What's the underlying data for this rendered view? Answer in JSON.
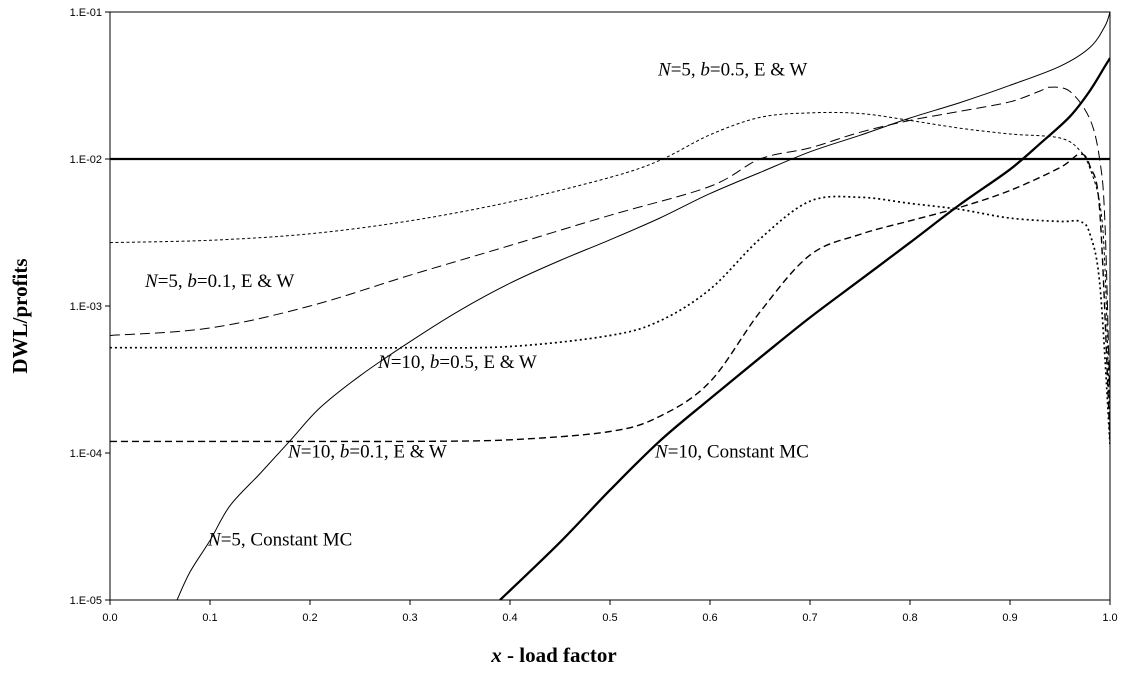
{
  "chart_data": {
    "type": "line",
    "title": "",
    "xlabel": "x - load factor",
    "xlabel_var": "x",
    "xlabel_rest": " - load factor",
    "ylabel": "DWL/profits",
    "y_scale": "log",
    "xlim": [
      0.0,
      1.0
    ],
    "ylim": [
      1e-05,
      0.1
    ],
    "x_ticks": [
      0.0,
      0.1,
      0.2,
      0.3,
      0.4,
      0.5,
      0.6,
      0.7,
      0.8,
      0.9,
      1.0
    ],
    "x_tick_labels": [
      "0.0",
      "0.1",
      "0.2",
      "0.3",
      "0.4",
      "0.5",
      "0.6",
      "0.7",
      "0.8",
      "0.9",
      "1.0"
    ],
    "y_ticks": [
      1e-05,
      0.0001,
      0.001,
      0.01,
      0.1
    ],
    "y_tick_labels": [
      "1.E-05",
      "1.E-04",
      "1.E-03",
      "1.E-02",
      "1.E-01"
    ],
    "grid": false,
    "legend": "none",
    "series": [
      {
        "style": "thick-solid",
        "points": [
          [
            0.0,
            0.01
          ],
          [
            1.0,
            0.01
          ]
        ]
      },
      {
        "style": "thin-solid",
        "points": [
          [
            0.067,
            1e-05
          ],
          [
            0.08,
            1.55e-05
          ],
          [
            0.1,
            2.54e-05
          ],
          [
            0.12,
            4.38e-05
          ],
          [
            0.15,
            7.24e-05
          ],
          [
            0.18,
            0.000121
          ],
          [
            0.21,
            0.000203
          ],
          [
            0.25,
            0.000335
          ],
          [
            0.3,
            0.000572
          ],
          [
            0.35,
            0.000935
          ],
          [
            0.4,
            0.00143
          ],
          [
            0.45,
            0.00204
          ],
          [
            0.5,
            0.00282
          ],
          [
            0.55,
            0.00397
          ],
          [
            0.6,
            0.00582
          ],
          [
            0.65,
            0.0081
          ],
          [
            0.7,
            0.0112
          ],
          [
            0.75,
            0.0145
          ],
          [
            0.8,
            0.019
          ],
          [
            0.85,
            0.0242
          ],
          [
            0.9,
            0.0317
          ],
          [
            0.95,
            0.0427
          ],
          [
            0.98,
            0.0574
          ],
          [
            0.995,
            0.0803
          ],
          [
            1.0,
            0.1
          ]
        ]
      },
      {
        "style": "thick-solid",
        "points": [
          [
            0.39,
            1e-05
          ],
          [
            0.45,
            2.47e-05
          ],
          [
            0.5,
            5.59e-05
          ],
          [
            0.55,
            0.000121
          ],
          [
            0.6,
            0.000234
          ],
          [
            0.65,
            0.000445
          ],
          [
            0.7,
            0.000835
          ],
          [
            0.75,
            0.0015
          ],
          [
            0.8,
            0.0027
          ],
          [
            0.85,
            0.0049
          ],
          [
            0.9,
            0.0085
          ],
          [
            0.93,
            0.0127
          ],
          [
            0.96,
            0.0195
          ],
          [
            0.98,
            0.0292
          ],
          [
            0.995,
            0.0428
          ],
          [
            1.0,
            0.0486
          ]
        ]
      },
      {
        "style": "short-dash",
        "points": [
          [
            0.0,
            0.0027
          ],
          [
            0.1,
            0.0028
          ],
          [
            0.2,
            0.0031
          ],
          [
            0.3,
            0.0038
          ],
          [
            0.4,
            0.0051
          ],
          [
            0.5,
            0.0075
          ],
          [
            0.55,
            0.0098
          ],
          [
            0.6,
            0.0146
          ],
          [
            0.65,
            0.0192
          ],
          [
            0.7,
            0.0206
          ],
          [
            0.75,
            0.0204
          ],
          [
            0.8,
            0.0183
          ],
          [
            0.85,
            0.0162
          ],
          [
            0.9,
            0.0148
          ],
          [
            0.95,
            0.0139
          ],
          [
            0.97,
            0.0114
          ],
          [
            0.98,
            0.0086
          ],
          [
            0.99,
            0.0049
          ],
          [
            0.995,
            0.0018
          ],
          [
            1.0,
            0.000135
          ]
        ]
      },
      {
        "style": "long-dash",
        "points": [
          [
            0.0,
            0.00063
          ],
          [
            0.1,
            0.000708
          ],
          [
            0.2,
            0.001
          ],
          [
            0.3,
            0.00162
          ],
          [
            0.4,
            0.00258
          ],
          [
            0.5,
            0.00414
          ],
          [
            0.6,
            0.00651
          ],
          [
            0.65,
            0.01
          ],
          [
            0.7,
            0.0119
          ],
          [
            0.75,
            0.0152
          ],
          [
            0.8,
            0.0183
          ],
          [
            0.85,
            0.0211
          ],
          [
            0.9,
            0.0245
          ],
          [
            0.93,
            0.029
          ],
          [
            0.94,
            0.0308
          ],
          [
            0.96,
            0.0288
          ],
          [
            0.98,
            0.0186
          ],
          [
            0.99,
            0.0096
          ],
          [
            0.995,
            0.0036
          ],
          [
            1.0,
            0.0002
          ]
        ]
      },
      {
        "style": "dotted-thick",
        "points": [
          [
            0.0,
            0.00052
          ],
          [
            0.1,
            0.00052
          ],
          [
            0.2,
            0.00052
          ],
          [
            0.3,
            0.00052
          ],
          [
            0.4,
            0.00053
          ],
          [
            0.5,
            0.00063
          ],
          [
            0.55,
            0.000793
          ],
          [
            0.6,
            0.0013
          ],
          [
            0.65,
            0.00286
          ],
          [
            0.7,
            0.00516
          ],
          [
            0.75,
            0.00549
          ],
          [
            0.8,
            0.00499
          ],
          [
            0.85,
            0.00454
          ],
          [
            0.9,
            0.00396
          ],
          [
            0.95,
            0.00376
          ],
          [
            0.97,
            0.00376
          ],
          [
            0.98,
            0.00308
          ],
          [
            0.99,
            0.00136
          ],
          [
            1.0,
            0.000114
          ]
        ]
      },
      {
        "style": "medium-dash",
        "points": [
          [
            0.0,
            0.00012
          ],
          [
            0.1,
            0.00012
          ],
          [
            0.2,
            0.00012
          ],
          [
            0.3,
            0.00012
          ],
          [
            0.4,
            0.000123
          ],
          [
            0.5,
            0.00014
          ],
          [
            0.55,
            0.000178
          ],
          [
            0.6,
            0.000305
          ],
          [
            0.65,
            0.000911
          ],
          [
            0.7,
            0.00222
          ],
          [
            0.75,
            0.00307
          ],
          [
            0.8,
            0.0038
          ],
          [
            0.85,
            0.00469
          ],
          [
            0.9,
            0.00611
          ],
          [
            0.95,
            0.00874
          ],
          [
            0.97,
            0.0108
          ],
          [
            0.98,
            0.0089
          ],
          [
            0.99,
            0.0042
          ],
          [
            1.0,
            0.00012
          ]
        ]
      }
    ],
    "annotations": [
      {
        "n": "N",
        "eq": "=5, ",
        "b": "b",
        "rest": "=0.5, E & W",
        "x": 0.548,
        "y": 0.037
      },
      {
        "n": "N",
        "eq": "=5, ",
        "b": "b",
        "rest": "=0.1, E & W",
        "x": 0.035,
        "y": 0.00135
      },
      {
        "n": "N",
        "eq": "=10, ",
        "b": "b",
        "rest": "=0.5, E & W",
        "x": 0.268,
        "y": 0.00038
      },
      {
        "n": "N",
        "eq": "=10, ",
        "b": "b",
        "rest": "=0.1, E & W",
        "x": 0.178,
        "y": 9.3e-05
      },
      {
        "n": "N",
        "eq": "=10, Constant MC",
        "b": "",
        "rest": "",
        "x": 0.545,
        "y": 9.3e-05
      },
      {
        "n": "N",
        "eq": "=5, Constant MC",
        "b": "",
        "rest": "",
        "x": 0.098,
        "y": 2.35e-05
      }
    ]
  }
}
